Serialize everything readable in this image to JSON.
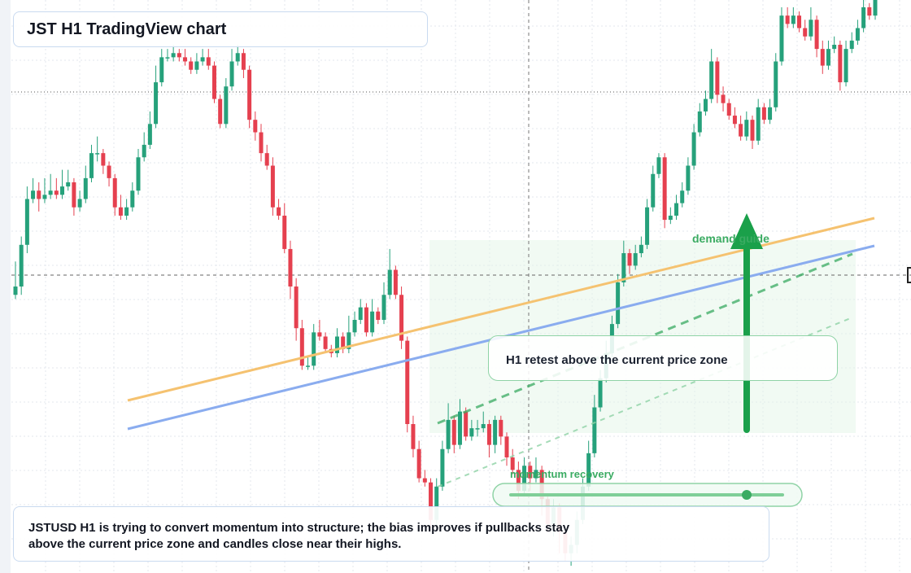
{
  "title": "JST H1 TradingView chart",
  "callout": "H1 retest above the current price zone",
  "note": {
    "line1": "JSTUSD H1 is trying to convert momentum into structure; the bias improves if pullbacks stay",
    "line2": "above the current price zone and candles close near their highs."
  },
  "labels": {
    "demand": "demand guide",
    "momentum": "momentum recovery"
  },
  "colors": {
    "up": "#26a17b",
    "down": "#e5404f",
    "orange_line": "#f5c270",
    "blue_line": "#8aacef",
    "green_annotation": "#1aa04a",
    "zone": "#e6f6ea"
  },
  "chart_data": {
    "type": "candlestick",
    "title": "JST H1 TradingView chart",
    "xlabel": "",
    "ylabel": "",
    "candles": [
      [
        0.049,
        0.0492,
        0.0498,
        0.0489
      ],
      [
        0.0492,
        0.0502,
        0.0504,
        0.049
      ],
      [
        0.0502,
        0.0513,
        0.0516,
        0.05
      ],
      [
        0.0513,
        0.0515,
        0.0518,
        0.0512
      ],
      [
        0.0515,
        0.0513,
        0.0517,
        0.051
      ],
      [
        0.0513,
        0.0514,
        0.0518,
        0.0512
      ],
      [
        0.0514,
        0.0515,
        0.0519,
        0.0513
      ],
      [
        0.0515,
        0.0514,
        0.0518,
        0.0513
      ],
      [
        0.0514,
        0.0516,
        0.052,
        0.0513
      ],
      [
        0.0516,
        0.0517,
        0.052,
        0.0515
      ],
      [
        0.0517,
        0.0511,
        0.0518,
        0.0509
      ],
      [
        0.0511,
        0.0513,
        0.0515,
        0.051
      ],
      [
        0.0513,
        0.0518,
        0.0521,
        0.0512
      ],
      [
        0.0518,
        0.0524,
        0.0526,
        0.0517
      ],
      [
        0.0524,
        0.0524,
        0.0528,
        0.0522
      ],
      [
        0.0524,
        0.0521,
        0.0525,
        0.0519
      ],
      [
        0.0521,
        0.0518,
        0.0522,
        0.0516
      ],
      [
        0.0518,
        0.0511,
        0.0519,
        0.0509
      ],
      [
        0.0511,
        0.0509,
        0.0514,
        0.0508
      ],
      [
        0.0509,
        0.0511,
        0.0513,
        0.0508
      ],
      [
        0.0511,
        0.0515,
        0.0517,
        0.051
      ],
      [
        0.0515,
        0.0523,
        0.0525,
        0.0514
      ],
      [
        0.0523,
        0.0526,
        0.0529,
        0.0522
      ],
      [
        0.0526,
        0.0531,
        0.0534,
        0.0525
      ],
      [
        0.0531,
        0.0541,
        0.0545,
        0.053
      ],
      [
        0.0541,
        0.0547,
        0.0549,
        0.054
      ],
      [
        0.0547,
        0.0547,
        0.0549,
        0.0546
      ],
      [
        0.0547,
        0.0548,
        0.055,
        0.0546
      ],
      [
        0.0548,
        0.0547,
        0.0549,
        0.0546
      ],
      [
        0.0547,
        0.0546,
        0.0549,
        0.0545
      ],
      [
        0.0546,
        0.0544,
        0.0547,
        0.0543
      ],
      [
        0.0544,
        0.0546,
        0.0548,
        0.0543
      ],
      [
        0.0546,
        0.0547,
        0.0549,
        0.0545
      ],
      [
        0.0547,
        0.0545,
        0.0549,
        0.0544
      ],
      [
        0.0545,
        0.0537,
        0.0546,
        0.0536
      ],
      [
        0.0537,
        0.0531,
        0.0538,
        0.053
      ],
      [
        0.0531,
        0.054,
        0.0542,
        0.053
      ],
      [
        0.054,
        0.0546,
        0.0549,
        0.0539
      ],
      [
        0.0546,
        0.0548,
        0.055,
        0.0545
      ],
      [
        0.0548,
        0.0544,
        0.0549,
        0.0542
      ],
      [
        0.0544,
        0.0532,
        0.0545,
        0.053
      ],
      [
        0.0532,
        0.0529,
        0.0534,
        0.0527
      ],
      [
        0.0529,
        0.0524,
        0.0531,
        0.0522
      ],
      [
        0.0524,
        0.0521,
        0.0526,
        0.052
      ],
      [
        0.0521,
        0.0511,
        0.0523,
        0.0509
      ],
      [
        0.0511,
        0.0509,
        0.0513,
        0.0508
      ],
      [
        0.0509,
        0.0501,
        0.0512,
        0.05
      ],
      [
        0.0501,
        0.0492,
        0.0503,
        0.0489
      ],
      [
        0.0492,
        0.0482,
        0.0494,
        0.0479
      ],
      [
        0.0482,
        0.0473,
        0.0484,
        0.0472
      ],
      [
        0.0473,
        0.0473,
        0.0475,
        0.0472
      ],
      [
        0.0473,
        0.0481,
        0.0483,
        0.0472
      ],
      [
        0.0481,
        0.048,
        0.0484,
        0.0479
      ],
      [
        0.048,
        0.0477,
        0.0481,
        0.0476
      ],
      [
        0.0477,
        0.0476,
        0.0478,
        0.0475
      ],
      [
        0.0476,
        0.048,
        0.0482,
        0.0475
      ],
      [
        0.048,
        0.0477,
        0.0481,
        0.0476
      ],
      [
        0.0477,
        0.0481,
        0.0485,
        0.0476
      ],
      [
        0.0481,
        0.0484,
        0.0486,
        0.048
      ],
      [
        0.0484,
        0.0487,
        0.0489,
        0.0483
      ],
      [
        0.0487,
        0.0481,
        0.0488,
        0.048
      ],
      [
        0.0481,
        0.0486,
        0.0489,
        0.048
      ],
      [
        0.0486,
        0.0484,
        0.0487,
        0.0483
      ],
      [
        0.0484,
        0.049,
        0.0493,
        0.0483
      ],
      [
        0.049,
        0.0496,
        0.0501,
        0.0489
      ],
      [
        0.0496,
        0.049,
        0.0497,
        0.0489
      ],
      [
        0.049,
        0.0479,
        0.0492,
        0.0477
      ],
      [
        0.0479,
        0.0459,
        0.048,
        0.0457
      ],
      [
        0.0459,
        0.0453,
        0.0461,
        0.0451
      ],
      [
        0.0453,
        0.0446,
        0.0455,
        0.0445
      ],
      [
        0.0446,
        0.0445,
        0.0448,
        0.0444
      ],
      [
        0.0445,
        0.0436,
        0.0446,
        0.0434
      ],
      [
        0.0436,
        0.0444,
        0.0446,
        0.0434
      ],
      [
        0.0444,
        0.0453,
        0.0455,
        0.0443
      ],
      [
        0.0453,
        0.046,
        0.0464,
        0.0452
      ],
      [
        0.046,
        0.0454,
        0.0461,
        0.0452
      ],
      [
        0.0454,
        0.0462,
        0.0465,
        0.0453
      ],
      [
        0.0462,
        0.0456,
        0.0463,
        0.0455
      ],
      [
        0.0456,
        0.0458,
        0.046,
        0.0455
      ],
      [
        0.0458,
        0.0458,
        0.046,
        0.0456
      ],
      [
        0.0458,
        0.0459,
        0.0462,
        0.0457
      ],
      [
        0.0459,
        0.0454,
        0.046,
        0.0451
      ],
      [
        0.0454,
        0.046,
        0.0461,
        0.0452
      ],
      [
        0.046,
        0.0456,
        0.0461,
        0.0454
      ],
      [
        0.0456,
        0.0451,
        0.0457,
        0.0449
      ],
      [
        0.0451,
        0.0448,
        0.0453,
        0.0447
      ],
      [
        0.0448,
        0.0443,
        0.045,
        0.0441
      ],
      [
        0.0443,
        0.0449,
        0.0451,
        0.0442
      ],
      [
        0.0449,
        0.0446,
        0.045,
        0.0443
      ],
      [
        0.0446,
        0.0448,
        0.0451,
        0.0445
      ],
      [
        0.0448,
        0.0441,
        0.0449,
        0.0437
      ],
      [
        0.0441,
        0.0435,
        0.0442,
        0.0433
      ],
      [
        0.0435,
        0.0439,
        0.0441,
        0.0432
      ],
      [
        0.0439,
        0.0433,
        0.044,
        0.0428
      ],
      [
        0.0433,
        0.0428,
        0.0434,
        0.0426
      ],
      [
        0.0428,
        0.043,
        0.0432,
        0.0425
      ],
      [
        0.043,
        0.0436,
        0.0438,
        0.0428
      ],
      [
        0.0436,
        0.0444,
        0.0446,
        0.0435
      ],
      [
        0.0444,
        0.0452,
        0.0455,
        0.0443
      ],
      [
        0.0452,
        0.0463,
        0.0466,
        0.0451
      ],
      [
        0.0463,
        0.047,
        0.0472,
        0.0462
      ],
      [
        0.047,
        0.0476,
        0.0479,
        0.0469
      ],
      [
        0.0476,
        0.0483,
        0.0485,
        0.0475
      ],
      [
        0.0483,
        0.0493,
        0.0495,
        0.0482
      ],
      [
        0.0493,
        0.05,
        0.0503,
        0.0492
      ],
      [
        0.05,
        0.0497,
        0.0501,
        0.0495
      ],
      [
        0.0497,
        0.05,
        0.0502,
        0.0496
      ],
      [
        0.05,
        0.0502,
        0.0504,
        0.0499
      ],
      [
        0.0502,
        0.0511,
        0.0513,
        0.0501
      ],
      [
        0.0511,
        0.0519,
        0.0521,
        0.051
      ],
      [
        0.0519,
        0.0523,
        0.0524,
        0.0518
      ],
      [
        0.0523,
        0.0508,
        0.0524,
        0.0506
      ],
      [
        0.0508,
        0.0509,
        0.0511,
        0.0507
      ],
      [
        0.0509,
        0.0512,
        0.0514,
        0.0508
      ],
      [
        0.0512,
        0.0515,
        0.0517,
        0.0511
      ],
      [
        0.0515,
        0.0521,
        0.0523,
        0.0514
      ],
      [
        0.0521,
        0.0529,
        0.0531,
        0.052
      ],
      [
        0.0529,
        0.0534,
        0.0536,
        0.0528
      ],
      [
        0.0534,
        0.0537,
        0.0539,
        0.0533
      ],
      [
        0.0537,
        0.0546,
        0.0549,
        0.0536
      ],
      [
        0.0546,
        0.0538,
        0.0547,
        0.0536
      ],
      [
        0.0538,
        0.0536,
        0.054,
        0.0534
      ],
      [
        0.0536,
        0.0533,
        0.0537,
        0.0532
      ],
      [
        0.0533,
        0.0531,
        0.0535,
        0.053
      ],
      [
        0.0531,
        0.0528,
        0.0533,
        0.0527
      ],
      [
        0.0528,
        0.0532,
        0.0534,
        0.0527
      ],
      [
        0.0532,
        0.0527,
        0.0533,
        0.0525
      ],
      [
        0.0527,
        0.0535,
        0.0537,
        0.0526
      ],
      [
        0.0535,
        0.0532,
        0.0536,
        0.0531
      ],
      [
        0.0532,
        0.0535,
        0.0537,
        0.0531
      ],
      [
        0.0535,
        0.0546,
        0.0548,
        0.0534
      ],
      [
        0.0546,
        0.0557,
        0.0559,
        0.0545
      ],
      [
        0.0557,
        0.0555,
        0.0559,
        0.0554
      ],
      [
        0.0555,
        0.0557,
        0.0559,
        0.0554
      ],
      [
        0.0557,
        0.0554,
        0.0558,
        0.0553
      ],
      [
        0.0554,
        0.0552,
        0.0556,
        0.0551
      ],
      [
        0.0552,
        0.0556,
        0.0559,
        0.0551
      ],
      [
        0.0556,
        0.0549,
        0.0557,
        0.0547
      ],
      [
        0.0549,
        0.0545,
        0.0551,
        0.0543
      ],
      [
        0.0545,
        0.0549,
        0.0551,
        0.0544
      ],
      [
        0.0549,
        0.055,
        0.0552,
        0.0548
      ],
      [
        0.055,
        0.0541,
        0.0551,
        0.0539
      ],
      [
        0.0541,
        0.0549,
        0.0551,
        0.054
      ],
      [
        0.0549,
        0.0551,
        0.0553,
        0.0548
      ],
      [
        0.0551,
        0.0554,
        0.0556,
        0.055
      ],
      [
        0.0554,
        0.0559,
        0.0561,
        0.0553
      ],
      [
        0.0559,
        0.0557,
        0.056,
        0.0556
      ],
      [
        0.0557,
        0.0562,
        0.0565,
        0.0556
      ]
    ],
    "annotations": [
      "demand guide",
      "momentum recovery",
      "H1 retest above the current price zone"
    ]
  }
}
